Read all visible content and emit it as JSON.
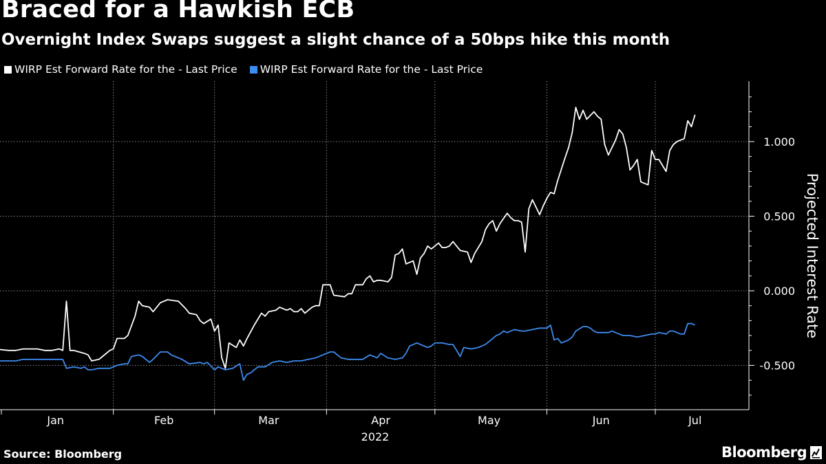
{
  "chart_data": {
    "type": "line",
    "title": "Braced for a Hawkish ECB",
    "subtitle": "Overnight Index Swaps suggest a slight chance of a 50bps hike this month",
    "ylabel": "Projected Interest Rate",
    "xlabel": "2022",
    "ylim": [
      -0.8,
      1.4
    ],
    "yticks": [
      1.0,
      0.5,
      0.0,
      -0.5
    ],
    "ytick_labels": [
      "1.000",
      "0.500",
      "0.000",
      "-0.500"
    ],
    "x_dividers": [
      "2022-01-01",
      "2022-02-01",
      "2022-03-01",
      "2022-04-01",
      "2022-05-01",
      "2022-06-01",
      "2022-07-01"
    ],
    "x_label_dates": [
      "2022-01-16",
      "2022-02-15",
      "2022-03-16",
      "2022-04-16",
      "2022-05-16",
      "2022-06-16",
      "2022-07-12"
    ],
    "xtick_labels": [
      "Jan",
      "Feb",
      "Mar",
      "Apr",
      "May",
      "Jun",
      "Jul"
    ],
    "grid": true,
    "legend_position": "top-left",
    "series": [
      {
        "name": "WIRP Est Forward Rate for the - Last Price",
        "color": "#ffffff",
        "points": [
          [
            "2021-12-30",
            -0.39
          ],
          [
            "2022-01-03",
            -0.4
          ],
          [
            "2022-01-05",
            -0.4
          ],
          [
            "2022-01-07",
            -0.39
          ],
          [
            "2022-01-11",
            -0.39
          ],
          [
            "2022-01-13",
            -0.4
          ],
          [
            "2022-01-15",
            -0.4
          ],
          [
            "2022-01-17",
            -0.39
          ],
          [
            "2022-01-18",
            -0.4
          ],
          [
            "2022-01-19",
            -0.07
          ],
          [
            "2022-01-20",
            -0.4
          ],
          [
            "2022-01-21",
            -0.4
          ],
          [
            "2022-01-24",
            -0.42
          ],
          [
            "2022-01-25",
            -0.43
          ],
          [
            "2022-01-26",
            -0.47
          ],
          [
            "2022-01-28",
            -0.46
          ],
          [
            "2022-01-29",
            -0.44
          ],
          [
            "2022-01-31",
            -0.4
          ],
          [
            "2022-02-01",
            -0.39
          ],
          [
            "2022-02-02",
            -0.32
          ],
          [
            "2022-02-04",
            -0.32
          ],
          [
            "2022-02-05",
            -0.3
          ],
          [
            "2022-02-07",
            -0.17
          ],
          [
            "2022-02-08",
            -0.07
          ],
          [
            "2022-02-09",
            -0.1
          ],
          [
            "2022-02-11",
            -0.11
          ],
          [
            "2022-02-12",
            -0.14
          ],
          [
            "2022-02-14",
            -0.08
          ],
          [
            "2022-02-15",
            -0.07
          ],
          [
            "2022-02-16",
            -0.06
          ],
          [
            "2022-02-19",
            -0.07
          ],
          [
            "2022-02-21",
            -0.12
          ],
          [
            "2022-02-22",
            -0.15
          ],
          [
            "2022-02-24",
            -0.16
          ],
          [
            "2022-02-25",
            -0.2
          ],
          [
            "2022-02-26",
            -0.22
          ],
          [
            "2022-02-28",
            -0.19
          ],
          [
            "2022-03-01",
            -0.27
          ],
          [
            "2022-03-02",
            -0.23
          ],
          [
            "2022-03-03",
            -0.45
          ],
          [
            "2022-03-04",
            -0.52
          ],
          [
            "2022-03-05",
            -0.35
          ],
          [
            "2022-03-07",
            -0.38
          ],
          [
            "2022-03-08",
            -0.33
          ],
          [
            "2022-03-09",
            -0.37
          ],
          [
            "2022-03-10",
            -0.32
          ],
          [
            "2022-03-12",
            -0.23
          ],
          [
            "2022-03-14",
            -0.15
          ],
          [
            "2022-03-15",
            -0.17
          ],
          [
            "2022-03-16",
            -0.14
          ],
          [
            "2022-03-18",
            -0.13
          ],
          [
            "2022-03-19",
            -0.11
          ],
          [
            "2022-03-21",
            -0.13
          ],
          [
            "2022-03-22",
            -0.12
          ],
          [
            "2022-03-23",
            -0.14
          ],
          [
            "2022-03-24",
            -0.14
          ],
          [
            "2022-03-25",
            -0.12
          ],
          [
            "2022-03-26",
            -0.15
          ],
          [
            "2022-03-28",
            -0.11
          ],
          [
            "2022-03-29",
            -0.1
          ],
          [
            "2022-03-30",
            -0.1
          ],
          [
            "2022-03-31",
            0.04
          ],
          [
            "2022-04-02",
            0.04
          ],
          [
            "2022-04-03",
            -0.03
          ],
          [
            "2022-04-06",
            -0.04
          ],
          [
            "2022-04-07",
            -0.02
          ],
          [
            "2022-04-08",
            -0.02
          ],
          [
            "2022-04-09",
            0.04
          ],
          [
            "2022-04-11",
            0.04
          ],
          [
            "2022-04-12",
            0.08
          ],
          [
            "2022-04-13",
            0.1
          ],
          [
            "2022-04-14",
            0.06
          ],
          [
            "2022-04-15",
            0.07
          ],
          [
            "2022-04-16",
            0.07
          ],
          [
            "2022-04-18",
            0.06
          ],
          [
            "2022-04-19",
            0.09
          ],
          [
            "2022-04-20",
            0.24
          ],
          [
            "2022-04-21",
            0.25
          ],
          [
            "2022-04-22",
            0.28
          ],
          [
            "2022-04-23",
            0.18
          ],
          [
            "2022-04-25",
            0.2
          ],
          [
            "2022-04-26",
            0.11
          ],
          [
            "2022-04-27",
            0.22
          ],
          [
            "2022-04-28",
            0.25
          ],
          [
            "2022-04-29",
            0.3
          ],
          [
            "2022-04-30",
            0.28
          ],
          [
            "2022-05-02",
            0.32
          ],
          [
            "2022-05-03",
            0.29
          ],
          [
            "2022-05-04",
            0.29
          ],
          [
            "2022-05-05",
            0.3
          ],
          [
            "2022-05-06",
            0.33
          ],
          [
            "2022-05-07",
            0.3
          ],
          [
            "2022-05-08",
            0.27
          ],
          [
            "2022-05-10",
            0.26
          ],
          [
            "2022-05-11",
            0.19
          ],
          [
            "2022-05-12",
            0.25
          ],
          [
            "2022-05-14",
            0.33
          ],
          [
            "2022-05-15",
            0.41
          ],
          [
            "2022-05-16",
            0.45
          ],
          [
            "2022-05-17",
            0.47
          ],
          [
            "2022-05-18",
            0.4
          ],
          [
            "2022-05-19",
            0.45
          ],
          [
            "2022-05-21",
            0.52
          ],
          [
            "2022-05-22",
            0.49
          ],
          [
            "2022-05-23",
            0.47
          ],
          [
            "2022-05-24",
            0.47
          ],
          [
            "2022-05-25",
            0.46
          ],
          [
            "2022-05-26",
            0.26
          ],
          [
            "2022-05-27",
            0.55
          ],
          [
            "2022-05-28",
            0.61
          ],
          [
            "2022-05-30",
            0.51
          ],
          [
            "2022-05-31",
            0.57
          ],
          [
            "2022-06-01",
            0.62
          ],
          [
            "2022-06-02",
            0.66
          ],
          [
            "2022-06-03",
            0.65
          ],
          [
            "2022-06-04",
            0.74
          ],
          [
            "2022-06-06",
            0.89
          ],
          [
            "2022-06-07",
            0.96
          ],
          [
            "2022-06-08",
            1.06
          ],
          [
            "2022-06-09",
            1.23
          ],
          [
            "2022-06-10",
            1.15
          ],
          [
            "2022-06-11",
            1.21
          ],
          [
            "2022-06-12",
            1.15
          ],
          [
            "2022-06-14",
            1.2
          ],
          [
            "2022-06-15",
            1.17
          ],
          [
            "2022-06-16",
            1.15
          ],
          [
            "2022-06-17",
            0.98
          ],
          [
            "2022-06-18",
            0.91
          ],
          [
            "2022-06-20",
            1.01
          ],
          [
            "2022-06-21",
            1.08
          ],
          [
            "2022-06-22",
            1.05
          ],
          [
            "2022-06-23",
            0.96
          ],
          [
            "2022-06-24",
            0.81
          ],
          [
            "2022-06-25",
            0.84
          ],
          [
            "2022-06-26",
            0.88
          ],
          [
            "2022-06-27",
            0.73
          ],
          [
            "2022-06-29",
            0.71
          ],
          [
            "2022-06-30",
            0.94
          ],
          [
            "2022-07-01",
            0.88
          ],
          [
            "2022-07-02",
            0.88
          ],
          [
            "2022-07-04",
            0.8
          ],
          [
            "2022-07-05",
            0.94
          ],
          [
            "2022-07-06",
            0.98
          ],
          [
            "2022-07-07",
            1.0
          ],
          [
            "2022-07-08",
            1.01
          ],
          [
            "2022-07-09",
            1.02
          ],
          [
            "2022-07-10",
            1.14
          ],
          [
            "2022-07-11",
            1.1
          ],
          [
            "2022-07-12",
            1.18
          ]
        ]
      },
      {
        "name": "WIRP Est Forward Rate for the - Last Price",
        "color": "#3d8cf0",
        "points": [
          [
            "2021-12-30",
            -0.47
          ],
          [
            "2022-01-05",
            -0.47
          ],
          [
            "2022-01-07",
            -0.46
          ],
          [
            "2022-01-18",
            -0.46
          ],
          [
            "2022-01-19",
            -0.52
          ],
          [
            "2022-01-21",
            -0.51
          ],
          [
            "2022-01-23",
            -0.52
          ],
          [
            "2022-01-24",
            -0.51
          ],
          [
            "2022-01-25",
            -0.53
          ],
          [
            "2022-01-26",
            -0.53
          ],
          [
            "2022-01-28",
            -0.52
          ],
          [
            "2022-01-31",
            -0.52
          ],
          [
            "2022-02-02",
            -0.5
          ],
          [
            "2022-02-04",
            -0.49
          ],
          [
            "2022-02-05",
            -0.49
          ],
          [
            "2022-02-06",
            -0.44
          ],
          [
            "2022-02-08",
            -0.43
          ],
          [
            "2022-02-09",
            -0.44
          ],
          [
            "2022-02-11",
            -0.48
          ],
          [
            "2022-02-12",
            -0.46
          ],
          [
            "2022-02-14",
            -0.41
          ],
          [
            "2022-02-16",
            -0.41
          ],
          [
            "2022-02-17",
            -0.43
          ],
          [
            "2022-02-19",
            -0.45
          ],
          [
            "2022-02-20",
            -0.46
          ],
          [
            "2022-02-22",
            -0.49
          ],
          [
            "2022-02-25",
            -0.48
          ],
          [
            "2022-02-26",
            -0.49
          ],
          [
            "2022-02-27",
            -0.48
          ],
          [
            "2022-03-01",
            -0.53
          ],
          [
            "2022-03-02",
            -0.51
          ],
          [
            "2022-03-04",
            -0.53
          ],
          [
            "2022-03-06",
            -0.52
          ],
          [
            "2022-03-08",
            -0.49
          ],
          [
            "2022-03-09",
            -0.6
          ],
          [
            "2022-03-10",
            -0.56
          ],
          [
            "2022-03-11",
            -0.55
          ],
          [
            "2022-03-13",
            -0.51
          ],
          [
            "2022-03-15",
            -0.51
          ],
          [
            "2022-03-17",
            -0.48
          ],
          [
            "2022-03-19",
            -0.47
          ],
          [
            "2022-03-21",
            -0.48
          ],
          [
            "2022-03-23",
            -0.47
          ],
          [
            "2022-03-25",
            -0.47
          ],
          [
            "2022-03-27",
            -0.46
          ],
          [
            "2022-03-29",
            -0.45
          ],
          [
            "2022-04-02",
            -0.41
          ],
          [
            "2022-04-03",
            -0.41
          ],
          [
            "2022-04-04",
            -0.43
          ],
          [
            "2022-04-05",
            -0.45
          ],
          [
            "2022-04-07",
            -0.46
          ],
          [
            "2022-04-09",
            -0.46
          ],
          [
            "2022-04-11",
            -0.46
          ],
          [
            "2022-04-13",
            -0.43
          ],
          [
            "2022-04-15",
            -0.45
          ],
          [
            "2022-04-16",
            -0.42
          ],
          [
            "2022-04-18",
            -0.45
          ],
          [
            "2022-04-20",
            -0.46
          ],
          [
            "2022-04-22",
            -0.45
          ],
          [
            "2022-04-23",
            -0.42
          ],
          [
            "2022-04-24",
            -0.37
          ],
          [
            "2022-04-26",
            -0.35
          ],
          [
            "2022-04-28",
            -0.37
          ],
          [
            "2022-04-29",
            -0.38
          ],
          [
            "2022-04-30",
            -0.37
          ],
          [
            "2022-05-01",
            -0.35
          ],
          [
            "2022-05-03",
            -0.35
          ],
          [
            "2022-05-05",
            -0.36
          ],
          [
            "2022-05-06",
            -0.36
          ],
          [
            "2022-05-08",
            -0.44
          ],
          [
            "2022-05-09",
            -0.38
          ],
          [
            "2022-05-11",
            -0.39
          ],
          [
            "2022-05-13",
            -0.38
          ],
          [
            "2022-05-14",
            -0.37
          ],
          [
            "2022-05-15",
            -0.36
          ],
          [
            "2022-05-17",
            -0.32
          ],
          [
            "2022-05-18",
            -0.3
          ],
          [
            "2022-05-19",
            -0.29
          ],
          [
            "2022-05-20",
            -0.27
          ],
          [
            "2022-05-21",
            -0.28
          ],
          [
            "2022-05-23",
            -0.26
          ],
          [
            "2022-05-25",
            -0.27
          ],
          [
            "2022-05-26",
            -0.27
          ],
          [
            "2022-05-28",
            -0.26
          ],
          [
            "2022-05-30",
            -0.25
          ],
          [
            "2022-06-01",
            -0.25
          ],
          [
            "2022-06-02",
            -0.23
          ],
          [
            "2022-06-03",
            -0.33
          ],
          [
            "2022-06-04",
            -0.32
          ],
          [
            "2022-06-05",
            -0.35
          ],
          [
            "2022-06-06",
            -0.34
          ],
          [
            "2022-06-07",
            -0.33
          ],
          [
            "2022-06-08",
            -0.31
          ],
          [
            "2022-06-09",
            -0.27
          ],
          [
            "2022-06-11",
            -0.24
          ],
          [
            "2022-06-12",
            -0.24
          ],
          [
            "2022-06-13",
            -0.25
          ],
          [
            "2022-06-14",
            -0.27
          ],
          [
            "2022-06-15",
            -0.28
          ],
          [
            "2022-06-17",
            -0.28
          ],
          [
            "2022-06-18",
            -0.28
          ],
          [
            "2022-06-19",
            -0.27
          ],
          [
            "2022-06-20",
            -0.28
          ],
          [
            "2022-06-22",
            -0.3
          ],
          [
            "2022-06-24",
            -0.3
          ],
          [
            "2022-06-26",
            -0.31
          ],
          [
            "2022-06-28",
            -0.3
          ],
          [
            "2022-06-30",
            -0.29
          ],
          [
            "2022-07-01",
            -0.29
          ],
          [
            "2022-07-02",
            -0.28
          ],
          [
            "2022-07-04",
            -0.29
          ],
          [
            "2022-07-05",
            -0.27
          ],
          [
            "2022-07-06",
            -0.27
          ],
          [
            "2022-07-08",
            -0.29
          ],
          [
            "2022-07-09",
            -0.29
          ],
          [
            "2022-07-10",
            -0.22
          ],
          [
            "2022-07-11",
            -0.22
          ],
          [
            "2022-07-12",
            -0.23
          ]
        ]
      }
    ]
  },
  "source": "Source: Bloomberg",
  "brand": "Bloomberg"
}
